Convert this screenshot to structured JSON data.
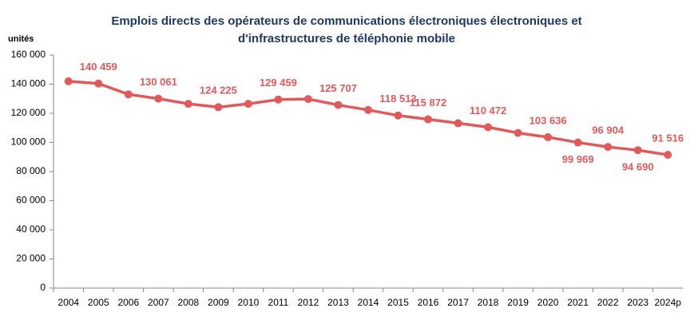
{
  "chart_data": {
    "type": "line",
    "title": [
      "Emplois directs des opérateurs de communications électroniques électroniques et",
      "d'infrastructures de téléphonie mobile"
    ],
    "y_label": "unités",
    "categories": [
      "2004",
      "2005",
      "2006",
      "2007",
      "2008",
      "2009",
      "2010",
      "2011",
      "2012",
      "2013",
      "2014",
      "2015",
      "2016",
      "2017",
      "2018",
      "2019",
      "2020",
      "2021",
      "2022",
      "2023",
      "2024p"
    ],
    "series": [
      {
        "name": "Emplois directs",
        "color": "#e05a5c",
        "values": [
          142000,
          140459,
          133000,
          130061,
          126500,
          124225,
          126500,
          129459,
          129800,
          125707,
          122300,
          118513,
          115872,
          113200,
          110472,
          106500,
          103636,
          99969,
          96904,
          94690,
          91516
        ],
        "value_labels": [
          null,
          "140 459",
          null,
          "130 061",
          null,
          "124 225",
          null,
          "129 459",
          null,
          "125 707",
          null,
          "118 513",
          "115 872",
          null,
          "110 472",
          null,
          "103 636",
          "99 969",
          "96 904",
          "94 690",
          "91 516"
        ]
      }
    ],
    "ylim": [
      0,
      160000
    ],
    "yticks": [
      0,
      {
        "value": 20000,
        "label": "20 000"
      },
      {
        "value": 40000,
        "label": "40 000"
      },
      {
        "value": 60000,
        "label": "60 000"
      },
      {
        "value": 80000,
        "label": "80 000"
      },
      {
        "value": 100000,
        "label": "100 000"
      },
      {
        "value": 120000,
        "label": "120 000"
      },
      {
        "value": 140000,
        "label": "140 000"
      },
      {
        "value": 160000,
        "label": "160 000"
      }
    ],
    "grid": false
  }
}
